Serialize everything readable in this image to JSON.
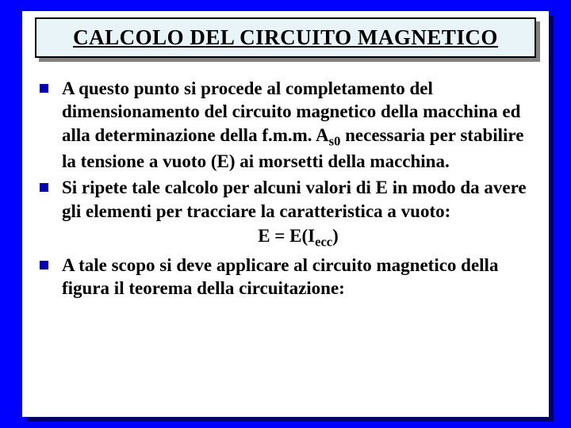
{
  "slide": {
    "title": "CALCOLO DEL CIRCUITO MAGNETICO",
    "bullets": [
      {
        "pre": "A questo punto si procede al completamento del dimensionamento del circuito magnetico della macchina ed alla determinazione della f.m.m. A",
        "sub": "s0",
        "post": " necessaria per stabilire la tensione a vuoto (E) ai morsetti della macchina."
      },
      {
        "text": "Si ripete tale calcolo per alcuni valori di E in modo da avere gli elementi per tracciare la caratteristica a vuoto:",
        "formula_pre": "E = E(I",
        "formula_sub": "ecc",
        "formula_post": ")"
      },
      {
        "text": "A tale scopo si deve applicare al circuito magnetico della figura il teorema della circuitazione:"
      }
    ]
  },
  "colors": {
    "slide_bg": "#0000ff",
    "card_bg": "#ffffff",
    "title_bg": "#e8f4f8",
    "bullet_color": "#0000b0",
    "text_color": "#000000"
  }
}
